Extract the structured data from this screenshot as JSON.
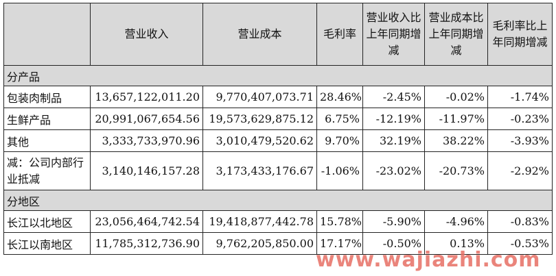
{
  "table": {
    "headers": [
      "",
      "营业收入",
      "营业成本",
      "毛利率",
      "营业收入比上年同期增减",
      "营业成本比上年同期增减",
      "毛利率比上年同期增减"
    ],
    "sections": [
      {
        "title": "分产品",
        "rows": [
          [
            "包装肉制品",
            "13,657,122,011.20",
            "9,770,407,073.71",
            "28.46%",
            "-2.45%",
            "-0.02%",
            "-1.74%"
          ],
          [
            "生鲜产品",
            "20,991,067,654.56",
            "19,573,629,875.12",
            "6.75%",
            "-12.19%",
            "-11.97%",
            "-0.23%"
          ],
          [
            "其他",
            "3,333,733,970.96",
            "3,010,479,520.62",
            "9.70%",
            "32.19%",
            "38.22%",
            "-3.93%"
          ],
          [
            "减：公司内部行业抵减",
            "3,140,146,157.28",
            "3,173,433,176.67",
            "-1.06%",
            "-23.02%",
            "-20.73%",
            "-2.92%"
          ]
        ]
      },
      {
        "title": "分地区",
        "rows": [
          [
            "长江以北地区",
            "23,056,464,742.54",
            "19,418,877,442.78",
            "15.78%",
            "-5.90%",
            "-4.96%",
            "-0.83%"
          ],
          [
            "长江以南地区",
            "11,785,312,736.90",
            "9,762,205,850.00",
            "17.17%",
            "-0.50%",
            "0.13%",
            "-0.53%"
          ]
        ]
      }
    ]
  },
  "watermark": "www.wajiazhi.com"
}
